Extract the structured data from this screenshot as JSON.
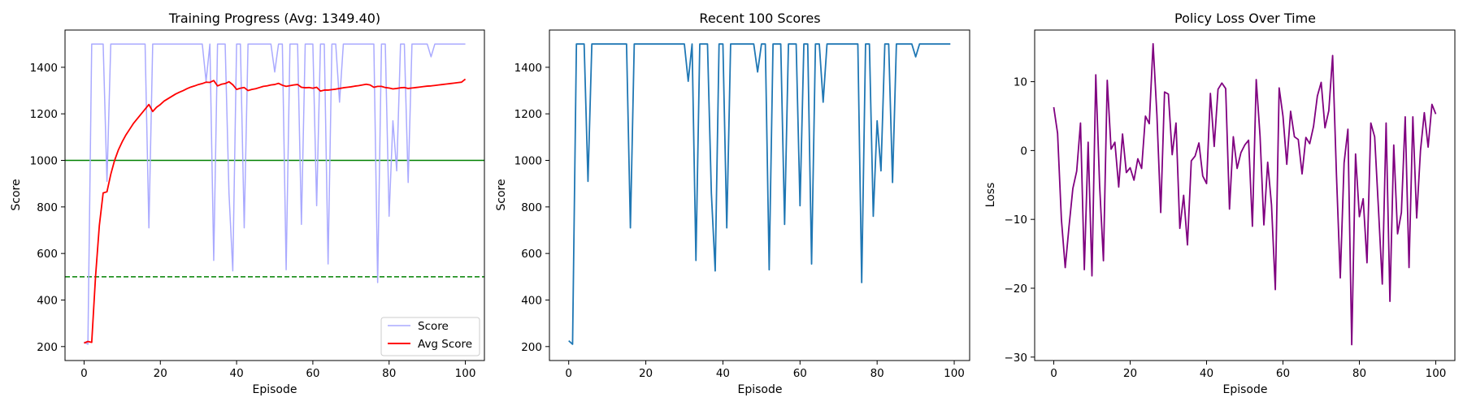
{
  "chart_data": [
    {
      "type": "line",
      "title": "Training Progress (Avg: 1349.40)",
      "xlabel": "Episode",
      "ylabel": "Score",
      "xlim": [
        -5,
        105
      ],
      "ylim": [
        140,
        1560
      ],
      "xticks": [
        0,
        20,
        40,
        60,
        80,
        100
      ],
      "yticks": [
        200,
        400,
        600,
        800,
        1000,
        1200,
        1400
      ],
      "legend_position": "lower-right",
      "series": [
        {
          "name": "Score",
          "color": "#aaaaff",
          "x": [
            0,
            1,
            2,
            3,
            4,
            5,
            6,
            7,
            8,
            9,
            10,
            11,
            12,
            13,
            14,
            15,
            16,
            17,
            18,
            19,
            20,
            21,
            22,
            23,
            24,
            25,
            26,
            27,
            28,
            29,
            30,
            31,
            32,
            33,
            34,
            35,
            36,
            37,
            38,
            39,
            40,
            41,
            42,
            43,
            44,
            45,
            46,
            47,
            48,
            49,
            50,
            51,
            52,
            53,
            54,
            55,
            56,
            57,
            58,
            59,
            60,
            61,
            62,
            63,
            64,
            65,
            66,
            67,
            68,
            69,
            70,
            71,
            72,
            73,
            74,
            75,
            76,
            77,
            78,
            79,
            80,
            81,
            82,
            83,
            84,
            85,
            86,
            87,
            88,
            89,
            90,
            91,
            92,
            93,
            94,
            95,
            96,
            97,
            98,
            99,
            100
          ],
          "values": [
            220,
            210,
            1500,
            1500,
            1500,
            1500,
            910,
            1500,
            1500,
            1500,
            1500,
            1500,
            1500,
            1500,
            1500,
            1500,
            1500,
            710,
            1500,
            1500,
            1500,
            1500,
            1500,
            1500,
            1500,
            1500,
            1500,
            1500,
            1500,
            1500,
            1500,
            1500,
            1340,
            1500,
            570,
            1500,
            1500,
            1500,
            860,
            525,
            1500,
            1500,
            710,
            1500,
            1500,
            1500,
            1500,
            1500,
            1500,
            1500,
            1380,
            1500,
            1500,
            530,
            1500,
            1500,
            1500,
            725,
            1500,
            1500,
            1500,
            805,
            1500,
            1500,
            555,
            1500,
            1500,
            1250,
            1500,
            1500,
            1500,
            1500,
            1500,
            1500,
            1500,
            1500,
            1500,
            475,
            1500,
            1500,
            760,
            1170,
            955,
            1500,
            1500,
            905,
            1500,
            1500,
            1500,
            1500,
            1500,
            1445,
            1500,
            1500,
            1500,
            1500,
            1500,
            1500,
            1500,
            1500,
            1500
          ]
        },
        {
          "name": "Avg Score",
          "color": "#ff0000",
          "x": [
            0,
            1,
            2,
            3,
            4,
            5,
            6,
            7,
            8,
            9,
            10,
            11,
            12,
            13,
            14,
            15,
            16,
            17,
            18,
            19,
            20,
            21,
            22,
            23,
            24,
            25,
            26,
            27,
            28,
            29,
            30,
            31,
            32,
            33,
            34,
            35,
            36,
            37,
            38,
            39,
            40,
            41,
            42,
            43,
            44,
            45,
            46,
            47,
            48,
            49,
            50,
            51,
            52,
            53,
            54,
            55,
            56,
            57,
            58,
            59,
            60,
            61,
            62,
            63,
            64,
            65,
            66,
            67,
            68,
            69,
            70,
            71,
            72,
            73,
            74,
            75,
            76,
            77,
            78,
            79,
            80,
            81,
            82,
            83,
            84,
            85,
            86,
            87,
            88,
            89,
            90,
            91,
            92,
            93,
            94,
            95,
            96,
            97,
            98,
            99,
            100
          ],
          "values": [
            215,
            222,
            218,
            500,
            720,
            860,
            865,
            940,
            1000,
            1045,
            1080,
            1110,
            1135,
            1160,
            1180,
            1200,
            1220,
            1240,
            1210,
            1228,
            1240,
            1255,
            1265,
            1275,
            1285,
            1293,
            1300,
            1308,
            1315,
            1320,
            1326,
            1330,
            1336,
            1335,
            1343,
            1320,
            1327,
            1330,
            1338,
            1325,
            1305,
            1310,
            1313,
            1300,
            1305,
            1308,
            1313,
            1318,
            1320,
            1324,
            1326,
            1331,
            1323,
            1318,
            1321,
            1324,
            1326,
            1314,
            1312,
            1313,
            1310,
            1314,
            1298,
            1302,
            1302,
            1304,
            1306,
            1309,
            1312,
            1314,
            1316,
            1319,
            1321,
            1324,
            1327,
            1324,
            1314,
            1318,
            1318,
            1313,
            1311,
            1307,
            1309,
            1312,
            1313,
            1309,
            1311,
            1313,
            1315,
            1317,
            1319,
            1320,
            1322,
            1324,
            1326,
            1328,
            1330,
            1332,
            1334,
            1336,
            1349
          ]
        }
      ],
      "hlines": [
        {
          "y": 1000,
          "color": "#008000",
          "style": "solid"
        },
        {
          "y": 500,
          "color": "#008000",
          "style": "dashed"
        }
      ]
    },
    {
      "type": "line",
      "title": "Recent 100 Scores",
      "xlabel": "Episode",
      "ylabel": "Score",
      "xlim": [
        -5,
        104
      ],
      "ylim": [
        140,
        1560
      ],
      "xticks": [
        0,
        20,
        40,
        60,
        80,
        100
      ],
      "yticks": [
        200,
        400,
        600,
        800,
        1000,
        1200,
        1400
      ],
      "series": [
        {
          "color": "#1f77b4",
          "x": [
            0,
            1,
            2,
            3,
            4,
            5,
            6,
            7,
            8,
            9,
            10,
            11,
            12,
            13,
            14,
            15,
            16,
            17,
            18,
            19,
            20,
            21,
            22,
            23,
            24,
            25,
            26,
            27,
            28,
            29,
            30,
            31,
            32,
            33,
            34,
            35,
            36,
            37,
            38,
            39,
            40,
            41,
            42,
            43,
            44,
            45,
            46,
            47,
            48,
            49,
            50,
            51,
            52,
            53,
            54,
            55,
            56,
            57,
            58,
            59,
            60,
            61,
            62,
            63,
            64,
            65,
            66,
            67,
            68,
            69,
            70,
            71,
            72,
            73,
            74,
            75,
            76,
            77,
            78,
            79,
            80,
            81,
            82,
            83,
            84,
            85,
            86,
            87,
            88,
            89,
            90,
            91,
            92,
            93,
            94,
            95,
            96,
            97,
            98,
            99
          ],
          "values": [
            225,
            210,
            1500,
            1500,
            1500,
            910,
            1500,
            1500,
            1500,
            1500,
            1500,
            1500,
            1500,
            1500,
            1500,
            1500,
            710,
            1500,
            1500,
            1500,
            1500,
            1500,
            1500,
            1500,
            1500,
            1500,
            1500,
            1500,
            1500,
            1500,
            1500,
            1340,
            1500,
            570,
            1500,
            1500,
            1500,
            860,
            525,
            1500,
            1500,
            710,
            1500,
            1500,
            1500,
            1500,
            1500,
            1500,
            1500,
            1380,
            1500,
            1500,
            530,
            1500,
            1500,
            1500,
            725,
            1500,
            1500,
            1500,
            805,
            1500,
            1500,
            555,
            1500,
            1500,
            1250,
            1500,
            1500,
            1500,
            1500,
            1500,
            1500,
            1500,
            1500,
            1500,
            475,
            1500,
            1500,
            760,
            1170,
            955,
            1500,
            1500,
            905,
            1500,
            1500,
            1500,
            1500,
            1500,
            1445,
            1500,
            1500,
            1500,
            1500,
            1500,
            1500,
            1500,
            1500,
            1500
          ]
        }
      ]
    },
    {
      "type": "line",
      "title": "Policy Loss Over Time",
      "xlabel": "Episode",
      "ylabel": "Loss",
      "xlim": [
        -5,
        105
      ],
      "ylim": [
        -30.5,
        17.5
      ],
      "xticks": [
        0,
        20,
        40,
        60,
        80,
        100
      ],
      "yticks": [
        -30,
        -20,
        -10,
        0,
        10
      ],
      "yticklabels": [
        "−30",
        "−20",
        "−10",
        "0",
        "10"
      ],
      "series": [
        {
          "color": "#800080",
          "x": [
            0,
            1,
            2,
            3,
            4,
            5,
            6,
            7,
            8,
            9,
            10,
            11,
            12,
            13,
            14,
            15,
            16,
            17,
            18,
            19,
            20,
            21,
            22,
            23,
            24,
            25,
            26,
            27,
            28,
            29,
            30,
            31,
            32,
            33,
            34,
            35,
            36,
            37,
            38,
            39,
            40,
            41,
            42,
            43,
            44,
            45,
            46,
            47,
            48,
            49,
            50,
            51,
            52,
            53,
            54,
            55,
            56,
            57,
            58,
            59,
            60,
            61,
            62,
            63,
            64,
            65,
            66,
            67,
            68,
            69,
            70,
            71,
            72,
            73,
            74,
            75,
            76,
            77,
            78,
            79,
            80,
            81,
            82,
            83,
            84,
            85,
            86,
            87,
            88,
            89,
            90,
            91,
            92,
            93,
            94,
            95,
            96,
            97,
            98,
            99,
            100
          ],
          "values": [
            6.3,
            2.5,
            -10.0,
            -17.0,
            -11.0,
            -5.5,
            -3.0,
            4.0,
            -17.3,
            1.2,
            -18.2,
            11.0,
            -5.0,
            -16.0,
            10.2,
            0.2,
            1.2,
            -5.3,
            2.4,
            -3.2,
            -2.5,
            -4.3,
            -1.2,
            -2.6,
            5.0,
            3.9,
            15.5,
            5.2,
            -9.0,
            8.5,
            8.2,
            -0.6,
            4.0,
            -11.3,
            -6.5,
            -13.7,
            -1.5,
            -0.8,
            1.1,
            -3.7,
            -4.8,
            8.3,
            0.6,
            8.9,
            9.8,
            9.0,
            -8.5,
            2.0,
            -2.6,
            -0.3,
            0.8,
            1.5,
            -11.0,
            10.3,
            2.1,
            -10.8,
            -1.7,
            -7.9,
            -20.2,
            9.1,
            5.0,
            -2.0,
            5.7,
            2.0,
            1.6,
            -3.4,
            1.9,
            1.0,
            3.5,
            7.9,
            9.9,
            3.3,
            5.8,
            13.8,
            -3.5,
            -18.5,
            -1.8,
            3.1,
            -28.2,
            -0.5,
            -9.6,
            -7.0,
            -16.3,
            4.0,
            2.0,
            -8.5,
            -19.4,
            4.0,
            -21.9,
            0.8,
            -12.1,
            -9.0,
            4.9,
            -17.0,
            4.9,
            -9.8,
            0.0,
            5.5,
            0.5,
            6.7,
            5.3
          ]
        }
      ]
    }
  ]
}
